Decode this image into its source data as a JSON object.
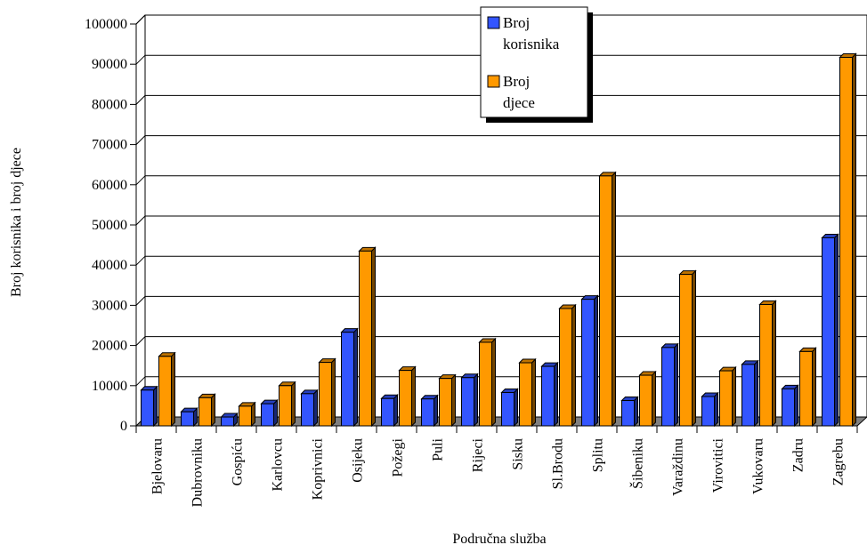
{
  "chart_data": {
    "type": "bar",
    "xlabel": "Područna služba",
    "ylabel": "Broj korisnika i broj djece",
    "ylim": [
      0,
      100000
    ],
    "yticks": [
      "0",
      "10000",
      "20000",
      "30000",
      "40000",
      "50000",
      "60000",
      "70000",
      "80000",
      "90000",
      "100000"
    ],
    "grid": true,
    "legend_position": "top-center",
    "categories": [
      "Bjelovaru",
      "Dubrovniku",
      "Gospiću",
      "Karlovcu",
      "Koprivnici",
      "Osijeku",
      "Požegi",
      "Puli",
      "Rijeci",
      "Sisku",
      "Sl.Brodu",
      "Splitu",
      "Šibeniku",
      "Varaždinu",
      "Virovitici",
      "Vukovaru",
      "Zadru",
      "Zagrebu"
    ],
    "series": [
      {
        "name": "Broj korisnika",
        "color": "#3355ff",
        "values": [
          8900,
          3500,
          2200,
          5500,
          8000,
          23300,
          6800,
          6700,
          12000,
          8300,
          14800,
          31500,
          6300,
          19500,
          7300,
          15300,
          9200,
          46800
        ]
      },
      {
        "name": "Broj djece",
        "color": "#ff9900",
        "values": [
          17300,
          7000,
          4900,
          10000,
          15800,
          43500,
          13800,
          11800,
          20800,
          15700,
          29200,
          62200,
          12600,
          37700,
          13700,
          30200,
          18500,
          91700
        ]
      }
    ]
  }
}
